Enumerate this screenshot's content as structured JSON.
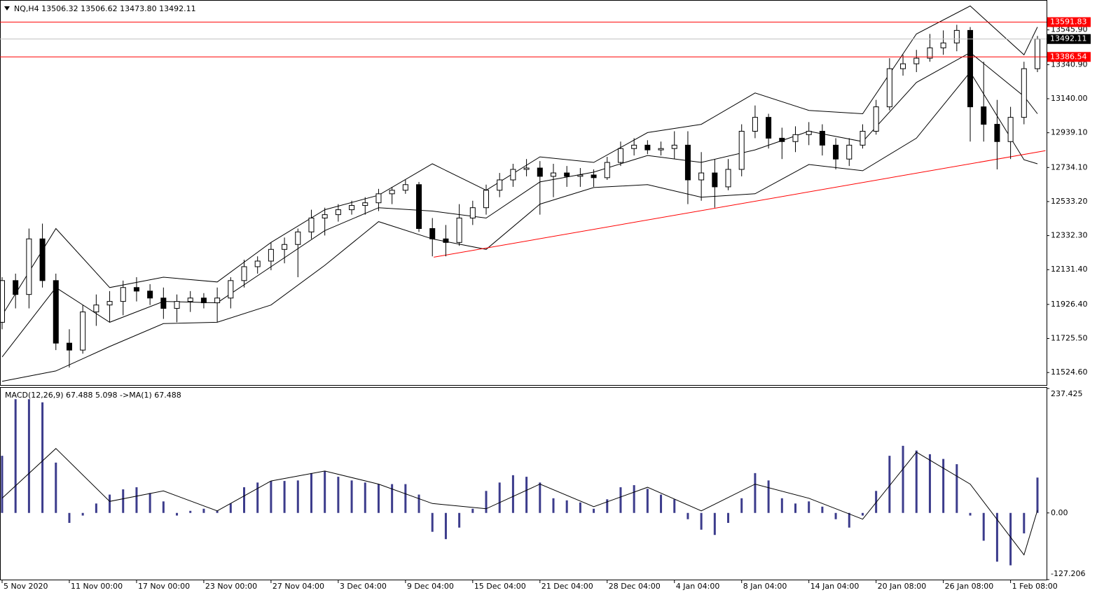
{
  "chart_data": [
    {
      "type": "candlestick",
      "title": "NQ,H4  13506.32 13506.62 13473.80 13492.11",
      "categories": [
        "5 Nov 2020",
        null,
        null,
        null,
        null,
        "11 Nov 00:00",
        null,
        null,
        null,
        null,
        "17 Nov 00:00",
        null,
        null,
        null,
        null,
        "23 Nov 00:00",
        null,
        null,
        null,
        null,
        "27 Nov 04:00",
        null,
        null,
        null,
        null,
        "3 Dec 04:00",
        null,
        null,
        null,
        null,
        "9 Dec 04:00",
        null,
        null,
        null,
        null,
        "15 Dec 04:00",
        null,
        null,
        null,
        null,
        "21 Dec 04:00",
        null,
        null,
        null,
        null,
        "28 Dec 04:00",
        null,
        null,
        null,
        null,
        "4 Jan 04:00",
        null,
        null,
        null,
        null,
        "8 Jan 04:00",
        null,
        null,
        null,
        null,
        "14 Jan 04:00",
        null,
        null,
        null,
        null,
        "20 Jan 08:00",
        null,
        null,
        null,
        null,
        "26 Jan 08:00",
        null,
        null,
        null,
        null,
        "1 Feb 08:00",
        null,
        null
      ],
      "open": [
        11821,
        12067,
        11985,
        12313,
        12067,
        11698,
        11657,
        11882,
        11923,
        11944,
        12026,
        12005,
        11964,
        11903,
        11944,
        11964,
        11936,
        11964,
        12067,
        12149,
        12182,
        12251,
        12280,
        12354,
        12436,
        12456,
        12485,
        12510,
        12526,
        12579,
        12600,
        12633,
        12374,
        12313,
        12292,
        12436,
        12497,
        12600,
        12661,
        12723,
        12731,
        12682,
        12702,
        12682,
        12690,
        12674,
        12764,
        12846,
        12866,
        12838,
        12846,
        12866,
        12661,
        12702,
        12620,
        12723,
        12948,
        13030,
        12907,
        12887,
        12928,
        12948,
        12866,
        12784,
        12866,
        12948,
        13092,
        13317,
        13346,
        13379,
        13440,
        13469,
        13543,
        13092,
        12989,
        12887,
        13030,
        13317
      ],
      "high": [
        12087,
        12108,
        12374,
        12403,
        12108,
        11780,
        11923,
        11985,
        12005,
        12067,
        12087,
        12046,
        12026,
        11985,
        12005,
        11993,
        12026,
        12087,
        12190,
        12210,
        12292,
        12321,
        12374,
        12485,
        12497,
        12518,
        12538,
        12559,
        12608,
        12620,
        12661,
        12649,
        12436,
        12395,
        12518,
        12538,
        12633,
        12702,
        12756,
        12784,
        12772,
        12756,
        12743,
        12731,
        12723,
        12797,
        12887,
        12907,
        12895,
        12887,
        12948,
        12948,
        12825,
        12784,
        12784,
        12989,
        13100,
        13051,
        12969,
        12977,
        13002,
        12989,
        12907,
        12907,
        12989,
        13133,
        13379,
        13399,
        13428,
        13522,
        13543,
        13576,
        13563,
        13358,
        13133,
        13092,
        13358,
        13510
      ],
      "low": [
        11780,
        11903,
        11903,
        12026,
        11657,
        11554,
        11636,
        11800,
        11821,
        11862,
        11944,
        11923,
        11841,
        11821,
        11882,
        11903,
        11821,
        11903,
        12026,
        12108,
        12128,
        12169,
        12087,
        12313,
        12333,
        12415,
        12456,
        12456,
        12477,
        12518,
        12579,
        12354,
        12210,
        12210,
        12272,
        12395,
        12456,
        12559,
        12620,
        12682,
        12456,
        12559,
        12620,
        12620,
        12620,
        12661,
        12743,
        12805,
        12813,
        12805,
        12784,
        12518,
        12538,
        12497,
        12600,
        12682,
        12907,
        12846,
        12784,
        12825,
        12866,
        12805,
        12723,
        12743,
        12846,
        12928,
        13071,
        13276,
        13297,
        13358,
        13399,
        13420,
        12887,
        12887,
        12723,
        12784,
        12989,
        13297
      ],
      "close": [
        12067,
        11985,
        12313,
        12067,
        11698,
        11657,
        11882,
        11923,
        11944,
        12026,
        12005,
        11964,
        11903,
        11944,
        11964,
        11936,
        11964,
        12067,
        12149,
        12182,
        12251,
        12280,
        12354,
        12436,
        12456,
        12485,
        12510,
        12526,
        12579,
        12600,
        12633,
        12374,
        12313,
        12292,
        12436,
        12497,
        12600,
        12661,
        12723,
        12731,
        12682,
        12702,
        12682,
        12690,
        12674,
        12764,
        12846,
        12866,
        12838,
        12846,
        12866,
        12661,
        12702,
        12620,
        12723,
        12948,
        13030,
        12907,
        12887,
        12928,
        12948,
        12866,
        12784,
        12866,
        12948,
        13092,
        13317,
        13346,
        13379,
        13440,
        13469,
        13543,
        13092,
        12989,
        12887,
        13030,
        13317,
        13492.11
      ],
      "up_color": "#ffffff",
      "down_color": "#000000",
      "overlays": [
        {
          "x": [
            0,
            4,
            8,
            12,
            16,
            20,
            24,
            28,
            32,
            36,
            40,
            44,
            48,
            52,
            56,
            60,
            64,
            68,
            72,
            76,
            77
          ],
          "values": [
            11862,
            12374,
            12026,
            12087,
            12059,
            12292,
            12485,
            12571,
            12756,
            12600,
            12797,
            12764,
            12940,
            12989,
            13174,
            13071,
            13051,
            13522,
            13687,
            13399,
            13563
          ],
          "color": "#000000"
        },
        {
          "x": [
            0,
            4,
            8,
            12,
            16,
            20,
            24,
            28,
            32,
            36,
            40,
            44,
            48,
            52,
            56,
            60,
            64,
            68,
            72,
            76,
            77
          ],
          "values": [
            11616,
            12026,
            11821,
            11944,
            11936,
            12149,
            12362,
            12497,
            12477,
            12436,
            12649,
            12707,
            12805,
            12764,
            12838,
            12948,
            12887,
            13236,
            13412,
            13154,
            13051
          ],
          "color": "#000000"
        },
        {
          "x": [
            0,
            4,
            8,
            12,
            16,
            20,
            24,
            28,
            32,
            36,
            40,
            44,
            48,
            52,
            56,
            60,
            64,
            68,
            72,
            76,
            77
          ],
          "values": [
            11473,
            11534,
            11678,
            11813,
            11821,
            11923,
            12157,
            12415,
            12313,
            12251,
            12518,
            12616,
            12633,
            12559,
            12579,
            12752,
            12715,
            12907,
            13297,
            12780,
            12756
          ],
          "color": "#000000"
        }
      ],
      "hlines": [
        {
          "value": 13591.83,
          "color": "#ff0000"
        },
        {
          "value": 13386.54,
          "color": "#ff0000"
        },
        {
          "value": 13492.11,
          "color": "#c0c0c0",
          "label_color": "#000000"
        }
      ],
      "trendline": {
        "x": [
          32.1,
          77.6
        ],
        "values": [
          12205,
          12833
        ],
        "color": "#ff0000"
      },
      "ylim": [
        11451,
        13714
      ],
      "yticks": [
        {
          "value": 11524.6,
          "label": "11524.60"
        },
        {
          "value": 11725.5,
          "label": "11725.50"
        },
        {
          "value": 11926.4,
          "label": "11926.40"
        },
        {
          "value": 12131.4,
          "label": "12131.40"
        },
        {
          "value": 12332.3,
          "label": "12332.30"
        },
        {
          "value": 12533.2,
          "label": "12533.20"
        },
        {
          "value": 12734.1,
          "label": "12734.10"
        },
        {
          "value": 12939.1,
          "label": "12939.10"
        },
        {
          "value": 13140,
          "label": "13140.00"
        },
        {
          "value": 13340.9,
          "label": "13340.90"
        },
        {
          "value": 13545.9,
          "label": "13545.90"
        }
      ]
    },
    {
      "type": "macd",
      "title": "MACD(12,26,9) 67.488 5.098  ->MA(1) 67.488",
      "histogram": [
        109,
        217,
        217,
        211,
        96,
        -19,
        -5,
        18,
        35,
        45,
        49,
        38,
        22,
        -5,
        4,
        8,
        4,
        18,
        49,
        58,
        61,
        61,
        62,
        76,
        80,
        69,
        62,
        58,
        55,
        55,
        55,
        35,
        -36,
        -50,
        -28,
        8,
        42,
        58,
        72,
        69,
        58,
        28,
        24,
        20,
        8,
        26,
        49,
        53,
        46,
        35,
        26,
        -12,
        -32,
        -42,
        -19,
        28,
        76,
        62,
        28,
        18,
        22,
        12,
        -12,
        -28,
        -5,
        42,
        109,
        128,
        119,
        112,
        103,
        93,
        -5,
        -53,
        -93,
        -100,
        -39,
        67.488
      ],
      "color": "#3c3c8c",
      "signal": {
        "x": [
          0,
          4,
          8,
          12,
          16,
          20,
          24,
          28,
          32,
          36,
          40,
          44,
          48,
          52,
          56,
          60,
          64,
          68,
          72,
          76,
          77
        ],
        "values": [
          28,
          123,
          22,
          42,
          4,
          61,
          80,
          55,
          18,
          8,
          55,
          12,
          49,
          4,
          55,
          28,
          -12,
          116,
          55,
          -80,
          5.098
        ],
        "color": "#000000"
      },
      "ylim": [
        -127.206,
        237.425
      ],
      "yticks": [
        -127.206,
        {
          "value": 0,
          "label": "0.00"
        },
        237.425
      ]
    }
  ]
}
